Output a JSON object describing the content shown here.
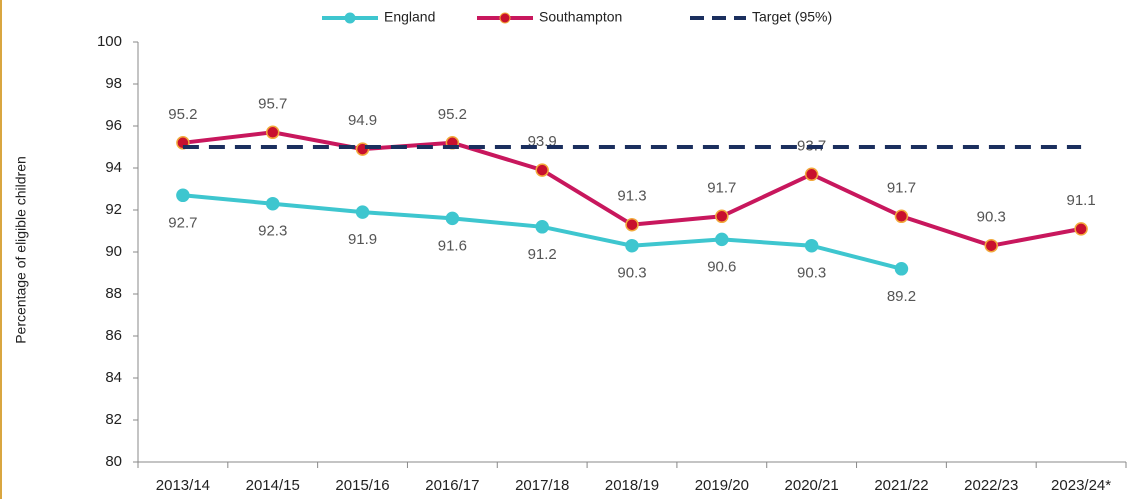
{
  "chart_data": {
    "type": "line",
    "y_label": "Percentage of eligible children",
    "categories": [
      "2013/14",
      "2014/15",
      "2015/16",
      "2016/17",
      "2017/18",
      "2018/19",
      "2019/20",
      "2020/21",
      "2021/22",
      "2022/23",
      "2023/24*"
    ],
    "series": [
      {
        "name": "England",
        "color": "#3ec6cf",
        "style": "solid",
        "markers": true,
        "labels": "below",
        "values": [
          92.7,
          92.3,
          91.9,
          91.6,
          91.2,
          90.3,
          90.6,
          90.3,
          89.2,
          null,
          null
        ]
      },
      {
        "name": "Southampton",
        "color": "#c8175d",
        "style": "solid",
        "markers": true,
        "labels": "above",
        "values": [
          95.2,
          95.7,
          94.9,
          95.2,
          93.9,
          91.3,
          91.7,
          93.7,
          91.7,
          90.3,
          91.1
        ]
      },
      {
        "name": "Target (95%)",
        "color": "#1b2f5e",
        "style": "dashed",
        "markers": false,
        "labels": "none",
        "values": [
          95,
          95,
          95,
          95,
          95,
          95,
          95,
          95,
          95,
          95,
          95
        ]
      }
    ],
    "ylim": [
      80,
      100
    ],
    "yticks": [
      80,
      82,
      84,
      86,
      88,
      90,
      92,
      94,
      96,
      98,
      100
    ],
    "grid": false,
    "legend": "top"
  }
}
